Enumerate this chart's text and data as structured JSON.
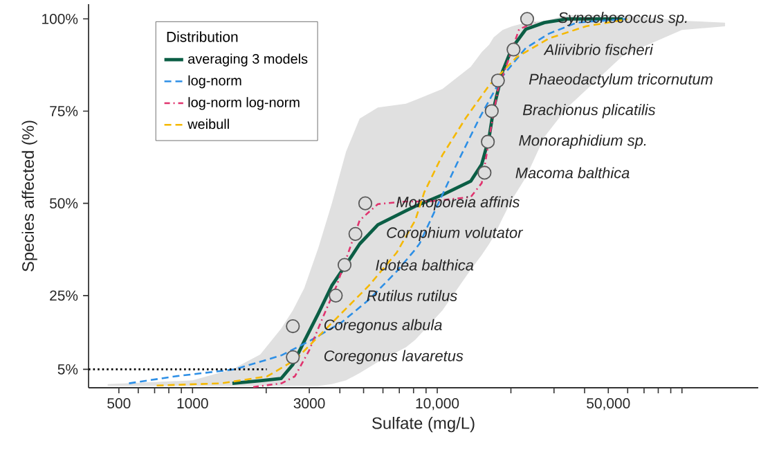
{
  "chart_data": {
    "type": "line",
    "xlabel": "Sulfate (mg/L)",
    "ylabel": "Species affected (%)",
    "legend_title": "Distribution",
    "legend": "top left",
    "log": "x",
    "xlim": [
      376,
      205000
    ],
    "ylim": [
      0,
      104
    ],
    "xticks": [
      {
        "value": 500,
        "label": "500"
      },
      {
        "value": 600,
        "label": null
      },
      {
        "value": 700,
        "label": null
      },
      {
        "value": 800,
        "label": null
      },
      {
        "value": 900,
        "label": null
      },
      {
        "value": 1000,
        "label": "1000"
      },
      {
        "value": 2000,
        "label": null
      },
      {
        "value": 3000,
        "label": "3000"
      },
      {
        "value": 4000,
        "label": null
      },
      {
        "value": 5000,
        "label": null
      },
      {
        "value": 6000,
        "label": null
      },
      {
        "value": 7000,
        "label": null
      },
      {
        "value": 8000,
        "label": null
      },
      {
        "value": 9000,
        "label": null
      },
      {
        "value": 10000,
        "label": "10,000"
      },
      {
        "value": 20000,
        "label": null
      },
      {
        "value": 30000,
        "label": null
      },
      {
        "value": 40000,
        "label": null
      },
      {
        "value": 50000,
        "label": "50,000"
      },
      {
        "value": 60000,
        "label": null
      },
      {
        "value": 70000,
        "label": null
      },
      {
        "value": 80000,
        "label": null
      },
      {
        "value": 90000,
        "label": null
      },
      {
        "value": 100000,
        "label": null
      }
    ],
    "yticks": [
      {
        "value": 5,
        "label": "5%"
      },
      {
        "value": 25,
        "label": "25%"
      },
      {
        "value": 50,
        "label": "50%"
      },
      {
        "value": 75,
        "label": "75%"
      },
      {
        "value": 100,
        "label": "100%"
      }
    ],
    "series": [
      {
        "name": "averaging 3 models",
        "color": "#0b5e45",
        "line_style": "solid",
        "x": [
          450,
          1000,
          1455,
          1890,
          2300,
          2570,
          2860,
          3270,
          3710,
          4240,
          4820,
          5720,
          7450,
          8130,
          10500,
          13700,
          15200,
          16300,
          17000,
          18500,
          20200,
          23000,
          27400,
          34000,
          57300,
          100000,
          150000
        ],
        "values": [
          null,
          null,
          1.2,
          1.9,
          2.5,
          6.3,
          12.6,
          20.2,
          27.7,
          33.4,
          39,
          44.2,
          48,
          49.2,
          52.3,
          56,
          60.6,
          68,
          75.7,
          85.8,
          92.1,
          97.2,
          99,
          100,
          100,
          null,
          null
        ],
        "upper": [
          1,
          2,
          5,
          9,
          16,
          21,
          27,
          38,
          50,
          64,
          73,
          76,
          77,
          78,
          81,
          87,
          91,
          93,
          95,
          97,
          98,
          99,
          99.5,
          101,
          101,
          99.5,
          99
        ],
        "lower": [
          0.5,
          0.5,
          0.5,
          0.5,
          0.5,
          0.5,
          0.5,
          0.5,
          1,
          2,
          4,
          7,
          11,
          13,
          21,
          32,
          36,
          39,
          41,
          46,
          51,
          57,
          68,
          76,
          90,
          97,
          98
        ]
      },
      {
        "name": "log-norm",
        "color": "#2d8fe6",
        "line_style": "dashed",
        "x": [
          550,
          850,
          1490,
          2310,
          2990,
          4060,
          5260,
          6820,
          8130,
          8470,
          12000,
          14900,
          18500,
          23000,
          28600,
          37200,
          59600
        ],
        "values": [
          1.2,
          3.1,
          5,
          8.8,
          12.6,
          17.7,
          23.9,
          31.5,
          37.5,
          39.1,
          60.6,
          73.2,
          84.5,
          92.1,
          96,
          99,
          100
        ]
      },
      {
        "name": "log-norm log-norm",
        "color": "#e0336e",
        "line_style": "dashdot",
        "x": [
          1770,
          2310,
          2620,
          2990,
          3400,
          3880,
          4330,
          4820,
          5720,
          7450,
          9250,
          13700,
          15200,
          15900,
          16600,
          17700,
          19400,
          21600,
          25100
        ],
        "values": [
          0.2,
          1.2,
          3.1,
          10,
          18.9,
          27.7,
          36.6,
          45.4,
          49.8,
          50.5,
          50.5,
          51.7,
          55.5,
          63.1,
          70.7,
          80.8,
          88.3,
          97.2,
          99
        ]
      },
      {
        "name": "weibull",
        "color": "#f5b800",
        "line_style": "dashed",
        "x": [
          714,
          1310,
          2020,
          2620,
          3270,
          4060,
          5260,
          6820,
          8130,
          8850,
          10500,
          13100,
          16300,
          21100,
          28600,
          40500,
          59800
        ],
        "values": [
          0.6,
          1.2,
          3.1,
          7.5,
          13.9,
          20.2,
          27.7,
          36.6,
          45.4,
          53,
          63.1,
          73.2,
          82,
          89.6,
          94.7,
          98,
          99.9
        ]
      },
      {
        "type": "line",
        "color": "#000000",
        "line_style": "dotted",
        "x": [
          376,
          2010
        ],
        "values": [
          5,
          5
        ]
      },
      {
        "type": "scatter",
        "color": "#dddddd",
        "marker": "circle",
        "x": [
          2570,
          2570,
          3850,
          4180,
          4630,
          5080,
          15600,
          16100,
          16700,
          17700,
          20500,
          23300
        ],
        "values": [
          8.3,
          16.7,
          25,
          33.3,
          41.7,
          50,
          58.3,
          66.7,
          75,
          83.3,
          91.7,
          100
        ]
      }
    ],
    "annotations": [
      {
        "text": "Coregonus lavaretus",
        "x": 2570,
        "y": 8.3
      },
      {
        "text": "Coregonus albula",
        "x": 2570,
        "y": 16.7
      },
      {
        "text": "Rutilus rutilus",
        "x": 3850,
        "y": 25
      },
      {
        "text": "Idotea balthica",
        "x": 4180,
        "y": 33.3
      },
      {
        "text": "Corophium volutator",
        "x": 4630,
        "y": 41.7
      },
      {
        "text": "Monoporeia affinis",
        "x": 5080,
        "y": 50
      },
      {
        "text": "Macoma balthica",
        "x": 15600,
        "y": 58.3
      },
      {
        "text": "Monoraphidium sp.",
        "x": 16100,
        "y": 66.7
      },
      {
        "text": "Brachionus plicatilis",
        "x": 16700,
        "y": 75
      },
      {
        "text": "Phaeodactylum tricornutum",
        "x": 17700,
        "y": 83.3
      },
      {
        "text": "Aliivibrio fischeri",
        "x": 20500,
        "y": 91.7
      },
      {
        "text": "Synechococcus sp.",
        "x": 23300,
        "y": 100
      }
    ]
  }
}
